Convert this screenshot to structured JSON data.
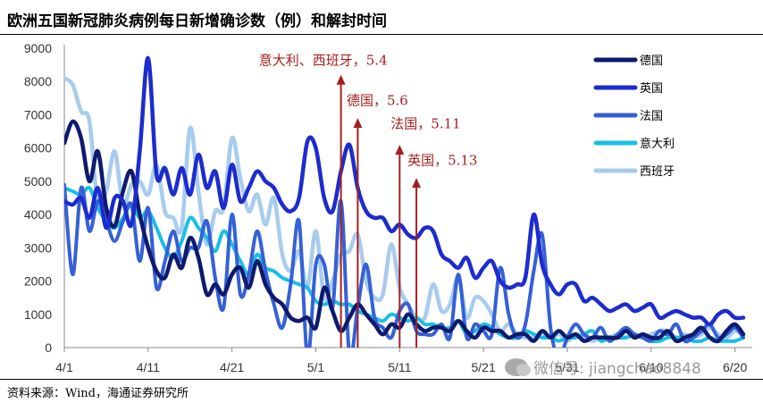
{
  "title": "欧洲五国新冠肺炎病例每日新增确诊数（例）和解封时间",
  "source": "资料来源：Wind，海通证券研究所",
  "watermark": "微信号: jiangchao8848",
  "chart_data": {
    "type": "line",
    "ylim": [
      0,
      9000
    ],
    "yticks": [
      "0",
      "1000",
      "2000",
      "3000",
      "4000",
      "5000",
      "6000",
      "7000",
      "8000",
      "9000"
    ],
    "xlim": [
      0,
      81
    ],
    "xticks": [
      {
        "label": "4/1",
        "x": 0
      },
      {
        "label": "4/11",
        "x": 10
      },
      {
        "label": "4/21",
        "x": 20
      },
      {
        "label": "5/1",
        "x": 30
      },
      {
        "label": "5/11",
        "x": 40
      },
      {
        "label": "5/21",
        "x": 50
      },
      {
        "label": "5/31",
        "x": 60
      },
      {
        "label": "6/10",
        "x": 70
      },
      {
        "label": "6/20",
        "x": 80
      }
    ],
    "legend_position": "top-right",
    "series": [
      {
        "name": "德国",
        "color": "#0d1a6e",
        "values": [
          6150,
          6800,
          6300,
          5000,
          5900,
          4200,
          3650,
          4700,
          5300,
          4000,
          3000,
          2300,
          2100,
          2800,
          2400,
          3300,
          2700,
          1600,
          1900,
          1600,
          2200,
          2400,
          1800,
          2600,
          1900,
          1500,
          1300,
          900,
          800,
          900,
          600,
          1800,
          1100,
          500,
          900,
          1300,
          1000,
          700,
          400,
          700,
          600,
          1000,
          700,
          500,
          600,
          600,
          500,
          800,
          500,
          300,
          600,
          500,
          500,
          300,
          400,
          400,
          200,
          500,
          300,
          500,
          300,
          400,
          200,
          300,
          300,
          300,
          300,
          500,
          300,
          400,
          300,
          300,
          500,
          200,
          300,
          400,
          600,
          300,
          200,
          500,
          700,
          400
        ]
      },
      {
        "name": "英国",
        "color": "#1c2ccd",
        "values": [
          4400,
          4300,
          4500,
          3900,
          4800,
          3600,
          4500,
          4400,
          3700,
          5900,
          8700,
          5200,
          5400,
          4600,
          5400,
          4600,
          5800,
          4800,
          5300,
          4200,
          5500,
          4400,
          4800,
          5300,
          5000,
          4800,
          4300,
          4100,
          4500,
          6200,
          6000,
          4500,
          4100,
          5300,
          6100,
          4800,
          4100,
          3900,
          3900,
          3500,
          3700,
          3400,
          3300,
          3600,
          3500,
          2800,
          2600,
          2400,
          2700,
          2100,
          2400,
          2600,
          2000,
          1800,
          1900,
          2100,
          4000,
          2500,
          1900,
          1600,
          1900,
          1900,
          1400,
          1500,
          1300,
          1100,
          1200,
          1300,
          1100,
          1200,
          1300,
          900,
          1000,
          1100,
          1000,
          900,
          900,
          700,
          1000,
          1100,
          900,
          900
        ]
      },
      {
        "name": "法国",
        "color": "#3560d6",
        "values": [
          4900,
          2200,
          4800,
          3500,
          4400,
          3800,
          3200,
          3800,
          4300,
          2600,
          4200,
          1800,
          2600,
          3500,
          2600,
          3000,
          3000,
          3800,
          2100,
          1200,
          4000,
          1600,
          2200,
          3500,
          2300,
          1300,
          600,
          1900,
          3800,
          -300,
          2500,
          2500,
          1200,
          4400,
          -200,
          1200,
          2500,
          900,
          600,
          300,
          1100,
          1300,
          500,
          400,
          400,
          700,
          300,
          2200,
          300,
          700,
          500,
          400,
          2400,
          1000,
          300,
          700,
          2300,
          3400,
          600,
          -300,
          300,
          700,
          400,
          300,
          600,
          200,
          400,
          600,
          400,
          300,
          200,
          500,
          400,
          700,
          200,
          300,
          500,
          700,
          300,
          400,
          600,
          300
        ]
      },
      {
        "name": "意大利",
        "color": "#19bfe6",
        "values": [
          4800,
          4700,
          4600,
          4800,
          4200,
          3800,
          3600,
          3900,
          4300,
          3900,
          4100,
          3600,
          3000,
          2700,
          3200,
          3900,
          3600,
          3300,
          2900,
          3500,
          3100,
          2600,
          2200,
          2800,
          2400,
          2300,
          2100,
          2000,
          1900,
          1800,
          1400,
          1300,
          1400,
          1300,
          1300,
          1100,
          1000,
          900,
          800,
          1000,
          900,
          800,
          900,
          700,
          700,
          600,
          600,
          800,
          400,
          500,
          700,
          600,
          400,
          300,
          300,
          500,
          400,
          300,
          300,
          200,
          300,
          300,
          400,
          500,
          200,
          300,
          300,
          300,
          400,
          300,
          200,
          200,
          300,
          300,
          300,
          200,
          200,
          300,
          200,
          200,
          200,
          300
        ]
      },
      {
        "name": "西班牙",
        "color": "#a8ccee",
        "values": [
          8100,
          7900,
          7100,
          6800,
          4300,
          4700,
          5900,
          4300,
          4900,
          5000,
          4600,
          5500,
          4100,
          3900,
          3600,
          6600,
          4700,
          3100,
          4100,
          4200,
          6300,
          5100,
          4100,
          4600,
          3700,
          4500,
          2800,
          2300,
          2900,
          1800,
          3500,
          1500,
          2000,
          2800,
          2900,
          3400,
          2000,
          1500,
          1600,
          3100,
          1800,
          1300,
          900,
          900,
          1900,
          1100,
          1300,
          2100,
          900,
          1500,
          1400,
          1000,
          500,
          700,
          400,
          300,
          300,
          400,
          300,
          400,
          200,
          400,
          300,
          200,
          300,
          300,
          400,
          300,
          400,
          300,
          400,
          500,
          500,
          300,
          400,
          300,
          400,
          600,
          400,
          300,
          500,
          400
        ]
      }
    ],
    "annotations": [
      {
        "text": "意大利、西班牙，5.4",
        "x": 33,
        "y": 8500,
        "arrow_top": 8200,
        "label_align": "end"
      },
      {
        "text": "德国，5.6",
        "x": 35,
        "y": 7300,
        "arrow_top": 6900,
        "label_align": "middle"
      },
      {
        "text": "法国，5.11",
        "x": 40,
        "y": 6600,
        "arrow_top": 6100,
        "label_align": "start"
      },
      {
        "text": "英国，5.13",
        "x": 42,
        "y": 5500,
        "arrow_top": 5100,
        "label_align": "start"
      }
    ]
  }
}
